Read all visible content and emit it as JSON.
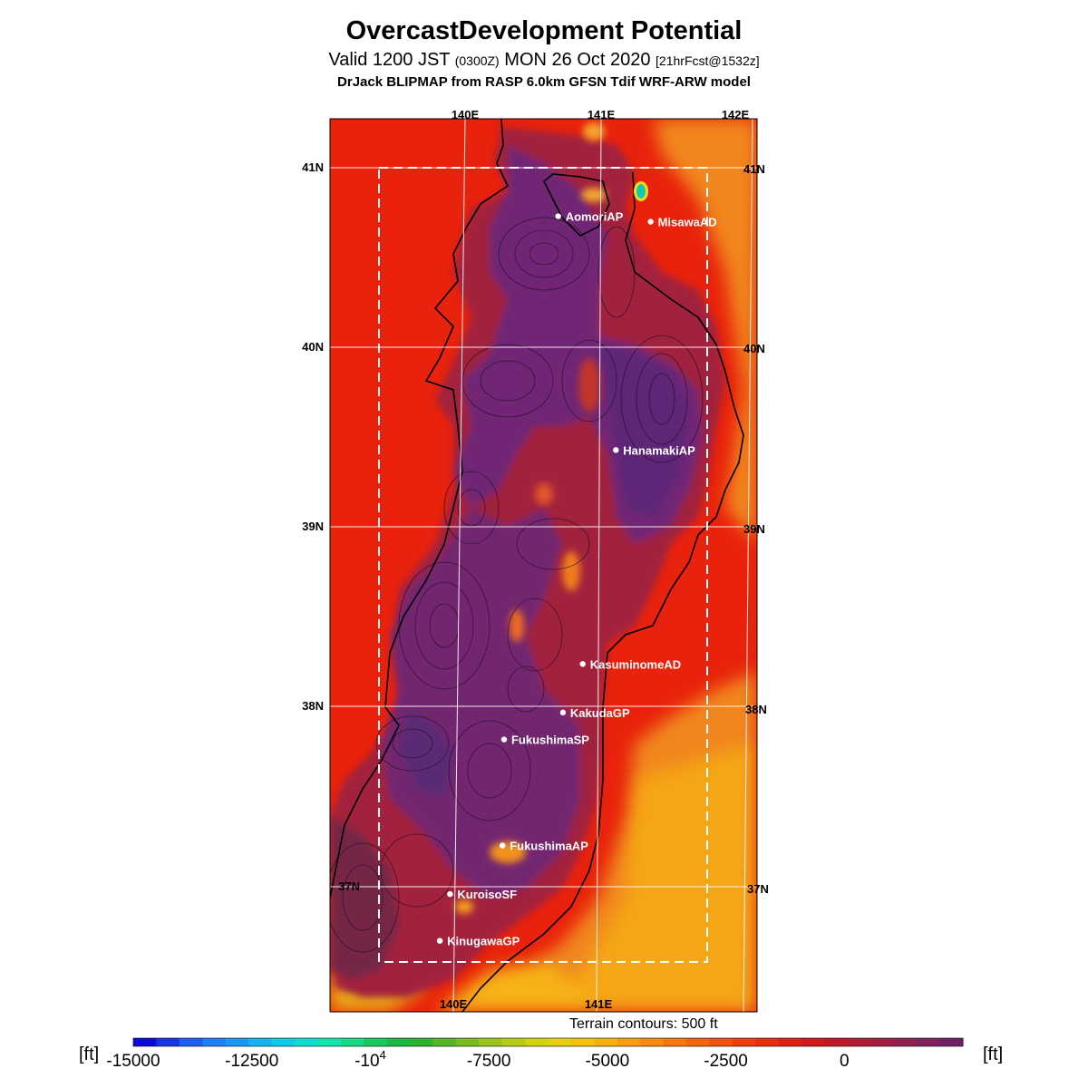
{
  "header": {
    "title": "OvercastDevelopment Potential",
    "valid_prefix": "Valid 1200 JST",
    "valid_zulu": "(0300Z)",
    "valid_date": "MON 26 Oct 2020",
    "forecast_tag": "[21hrFcst@1532z]",
    "model_line": "DrJack BLIPMAP from RASP 6.0km GFSN Tdif WRF-ARW model"
  },
  "map": {
    "lon_labels_top": [
      "140E",
      "141E",
      "142E"
    ],
    "lon_labels_bottom": [
      "140E",
      "141E"
    ],
    "lat_labels_left": [
      "41N",
      "40N",
      "39N",
      "38N",
      "37N"
    ],
    "lat_labels_right": [
      "41N",
      "40N",
      "39N",
      "38N",
      "37N"
    ],
    "stations": [
      {
        "name": "AomoriAP",
        "lat": 40.73,
        "lon": 140.69
      },
      {
        "name": "MisawaAD",
        "lat": 40.7,
        "lon": 141.37
      },
      {
        "name": "HanamakiAP",
        "lat": 39.43,
        "lon": 141.14
      },
      {
        "name": "KasuminomeAD",
        "lat": 38.24,
        "lon": 140.92
      },
      {
        "name": "KakudaGP",
        "lat": 37.97,
        "lon": 140.78
      },
      {
        "name": "FukushimaSP",
        "lat": 37.82,
        "lon": 140.35
      },
      {
        "name": "FukushimaAP",
        "lat": 37.23,
        "lon": 140.35
      },
      {
        "name": "KuroisoSF",
        "lat": 36.96,
        "lon": 139.97
      },
      {
        "name": "KinugawaGP",
        "lat": 36.7,
        "lon": 139.9
      }
    ],
    "colors": {
      "sea": "#e8220c",
      "land_high": "#6e2479",
      "land_mid": "#a42a3d",
      "coast_low": "#f4a20f",
      "grid": "#ffffff",
      "station": "#ffffff"
    }
  },
  "terrain_note": "Terrain contours: 500 ft",
  "colorbar": {
    "unit": "[ft]",
    "tick_labels": [
      "-15000",
      "-12500",
      "-10^4",
      "-7500",
      "-5000",
      "-2500",
      "0"
    ],
    "tick_values": [
      -15000,
      -12500,
      -10000,
      -7500,
      -5000,
      -2500,
      0
    ],
    "min": -15000,
    "max": 2500,
    "step": 500,
    "palette": [
      "#0b0bd6",
      "#1536e3",
      "#1e5ef0",
      "#1f7ff4",
      "#1a99f2",
      "#15b3ee",
      "#10cbe6",
      "#10dccf",
      "#12e4ac",
      "#16d885",
      "#1ac860",
      "#1db845",
      "#2fb22f",
      "#56b527",
      "#78bc1f",
      "#9ac41b",
      "#b8cb17",
      "#d2d214",
      "#e6cf12",
      "#f3c112",
      "#f6b012",
      "#f79d11",
      "#f78a10",
      "#f6780f",
      "#f4650e",
      "#f0520e",
      "#ec3f0e",
      "#e62e0f",
      "#dd2214",
      "#cf1b1d",
      "#c01a29",
      "#af1c36",
      "#a01f42",
      "#8f214f",
      "#7f215c",
      "#6f2166"
    ]
  }
}
